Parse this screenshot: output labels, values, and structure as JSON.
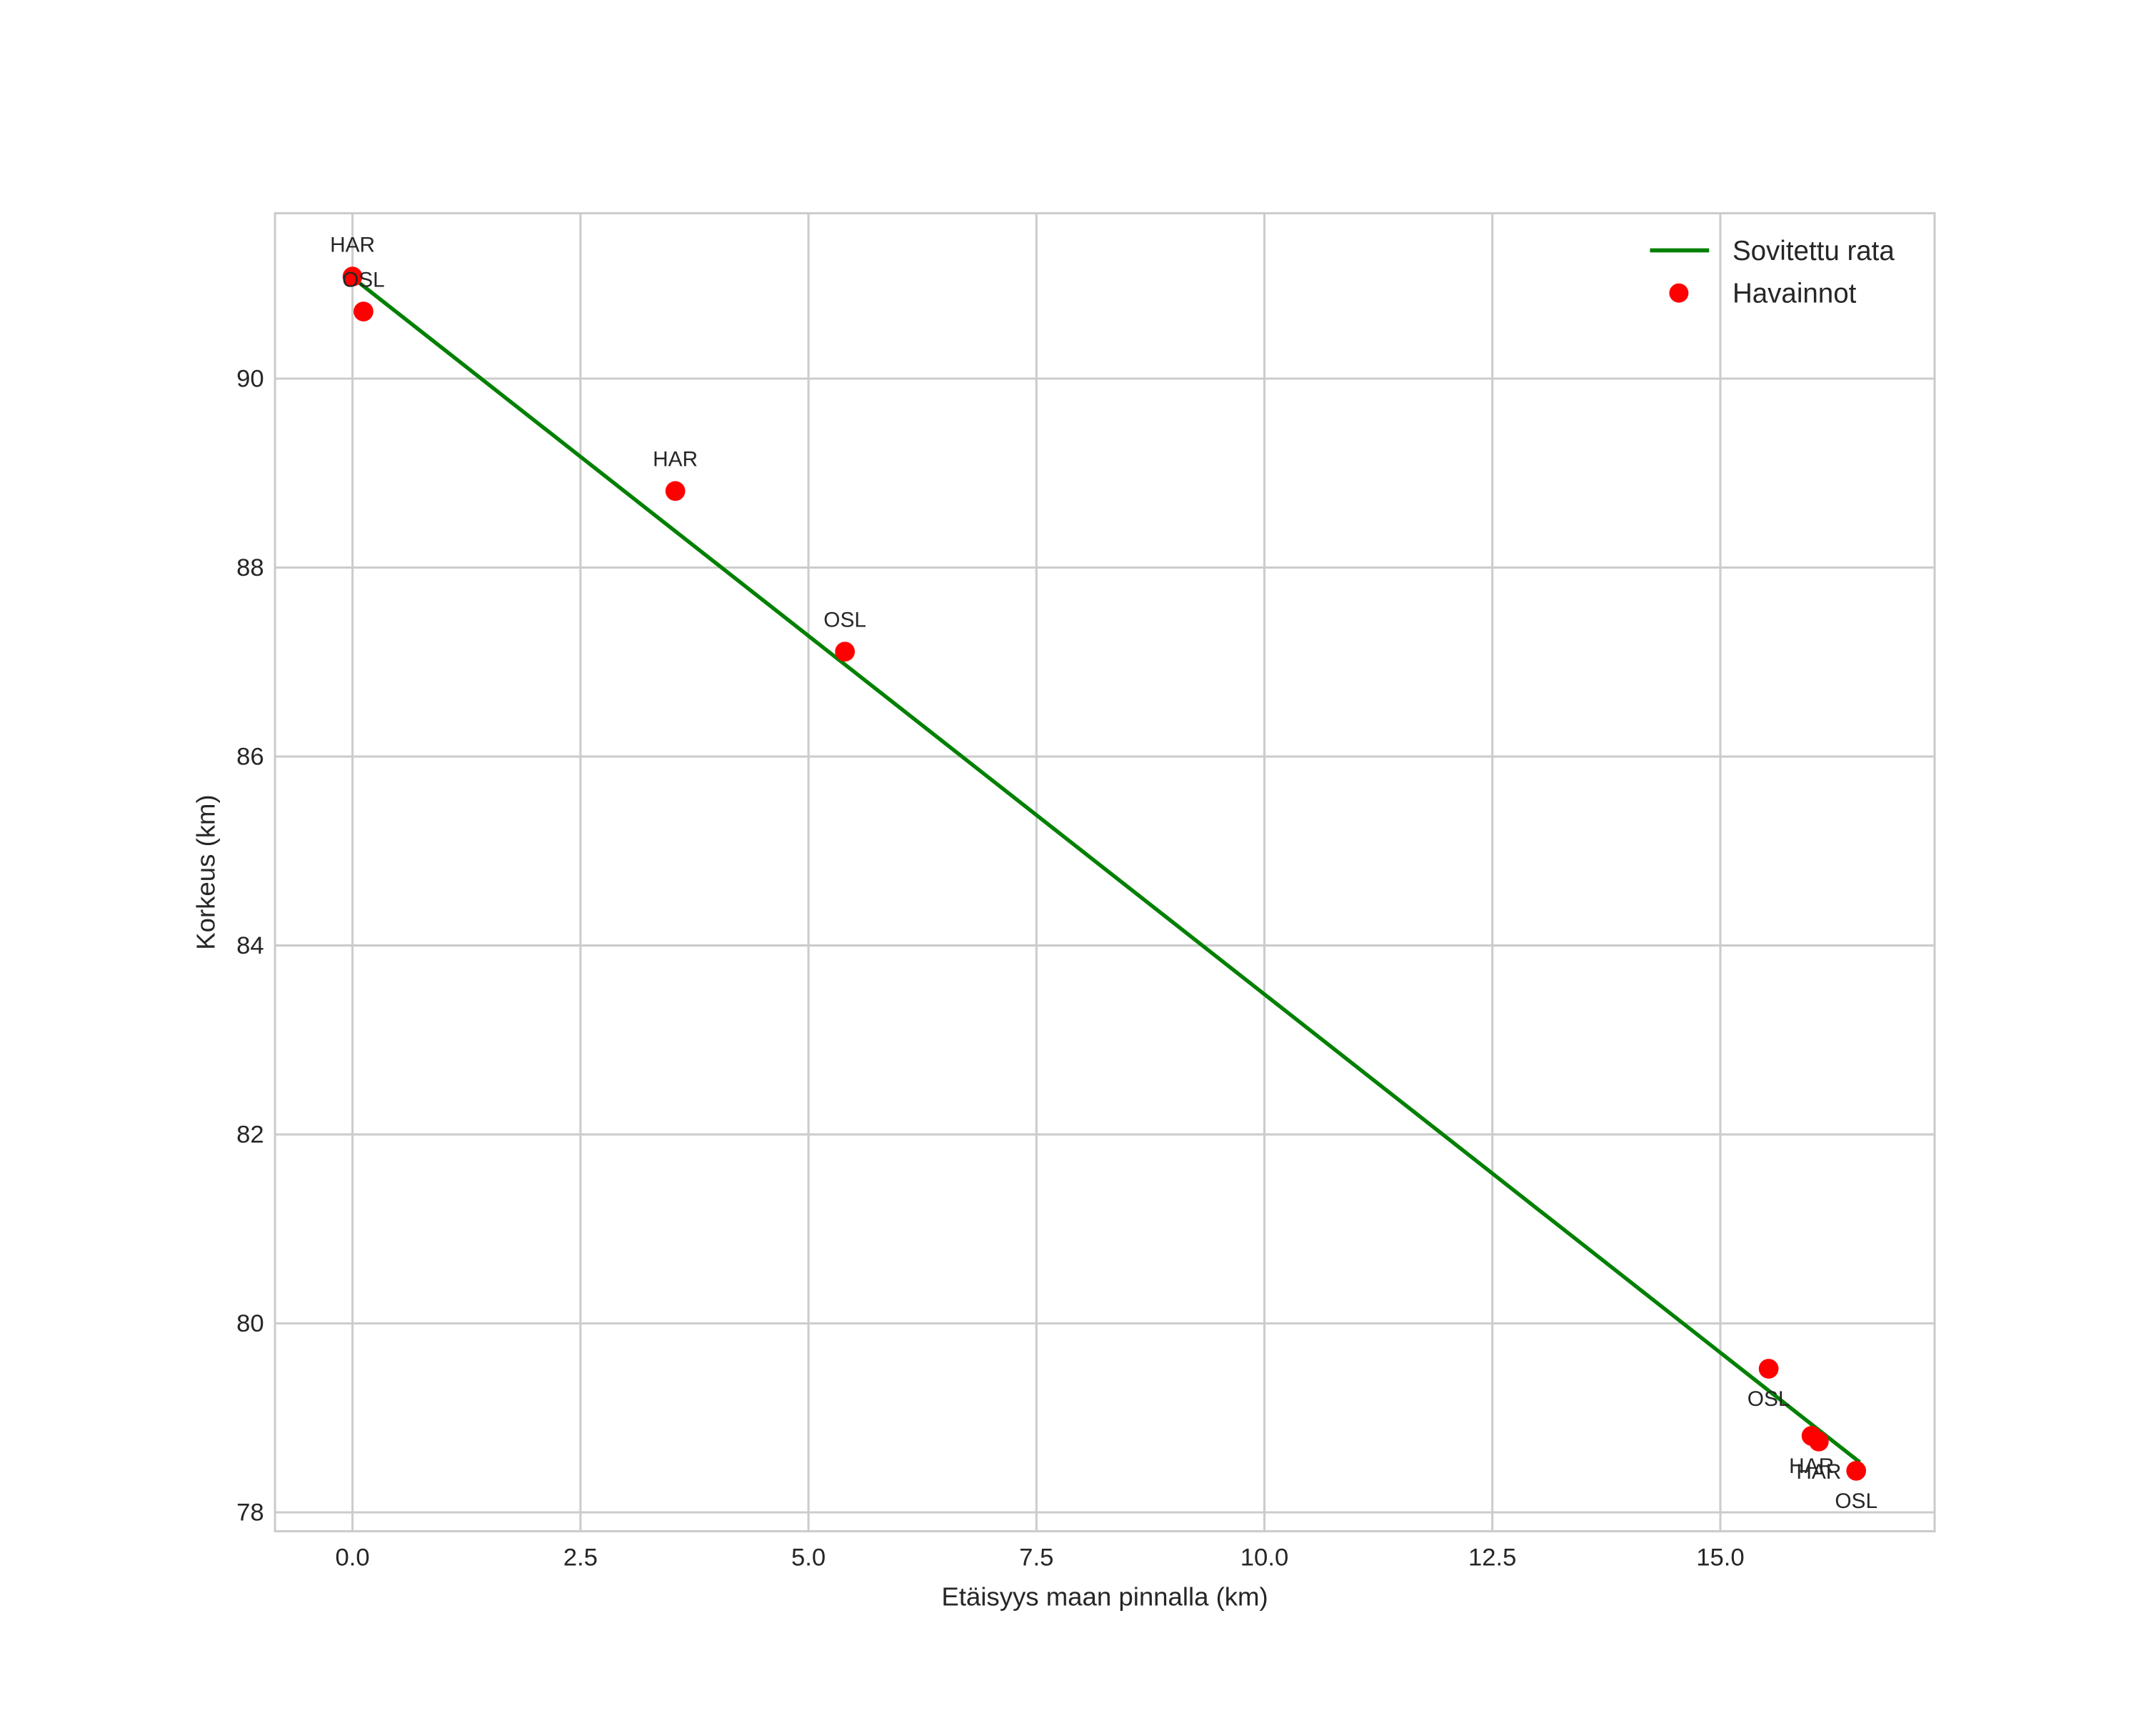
{
  "chart_data": {
    "type": "scatter",
    "title": "",
    "xlabel": "Etäisyys maan pinnalla (km)",
    "ylabel": "Korkeus (km)",
    "xlim": [
      -0.85,
      17.35
    ],
    "ylim": [
      77.8,
      91.75
    ],
    "grid": true,
    "legend_position": "upper right",
    "x_ticks": [
      0.0,
      2.5,
      5.0,
      7.5,
      10.0,
      12.5,
      15.0
    ],
    "x_tick_labels": [
      "0.0",
      "2.5",
      "5.0",
      "7.5",
      "10.0",
      "12.5",
      "15.0"
    ],
    "y_ticks": [
      78,
      80,
      82,
      84,
      86,
      88,
      90
    ],
    "y_tick_labels": [
      "78",
      "80",
      "82",
      "84",
      "86",
      "88",
      "90"
    ],
    "series": [
      {
        "name": "Sovitettu rata",
        "kind": "line",
        "color": "#008000",
        "x": [
          0.0,
          16.53
        ],
        "y": [
          91.07,
          78.53
        ]
      },
      {
        "name": "Havainnot",
        "kind": "scatter",
        "color": "#ff0000",
        "points": [
          {
            "x": 0.0,
            "y": 91.08,
            "label": "HAR",
            "label_pos": "above"
          },
          {
            "x": 0.12,
            "y": 90.71,
            "label": "OSL",
            "label_pos": "above"
          },
          {
            "x": 3.54,
            "y": 88.81,
            "label": "HAR",
            "label_pos": "above"
          },
          {
            "x": 5.4,
            "y": 87.11,
            "label": "OSL",
            "label_pos": "above"
          },
          {
            "x": 15.53,
            "y": 79.52,
            "label": "OSL",
            "label_pos": "below"
          },
          {
            "x": 16.0,
            "y": 78.81,
            "label": "HAR",
            "label_pos": "below"
          },
          {
            "x": 16.08,
            "y": 78.75,
            "label": "HAR",
            "label_pos": "below"
          },
          {
            "x": 16.49,
            "y": 78.44,
            "label": "OSL",
            "label_pos": "below"
          }
        ]
      }
    ]
  },
  "legend": {
    "items": [
      {
        "label": "Sovitettu rata",
        "kind": "line",
        "color": "#008000"
      },
      {
        "label": "Havainnot",
        "kind": "marker",
        "color": "#ff0000"
      }
    ]
  },
  "style": {
    "grid_color": "#cccccc",
    "spine_color": "#cccccc",
    "text_color": "#262626"
  }
}
